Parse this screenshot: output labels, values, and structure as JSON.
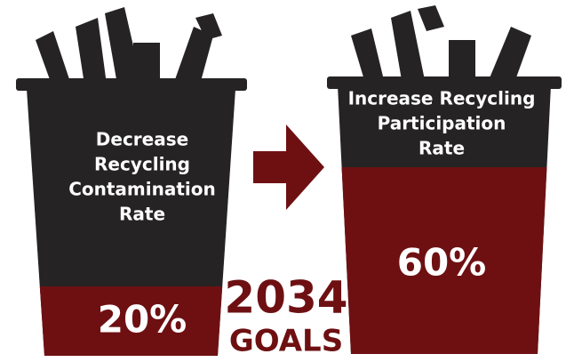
{
  "bins": [
    {
      "lines": [
        "Decrease",
        "Recycling",
        "Contamination",
        "Rate"
      ],
      "value": "20%"
    },
    {
      "lines": [
        "Increase Recycling",
        "Participation",
        "Rate"
      ],
      "value": "60%"
    }
  ],
  "goal": {
    "year": "2034",
    "label": "GOALS"
  }
}
